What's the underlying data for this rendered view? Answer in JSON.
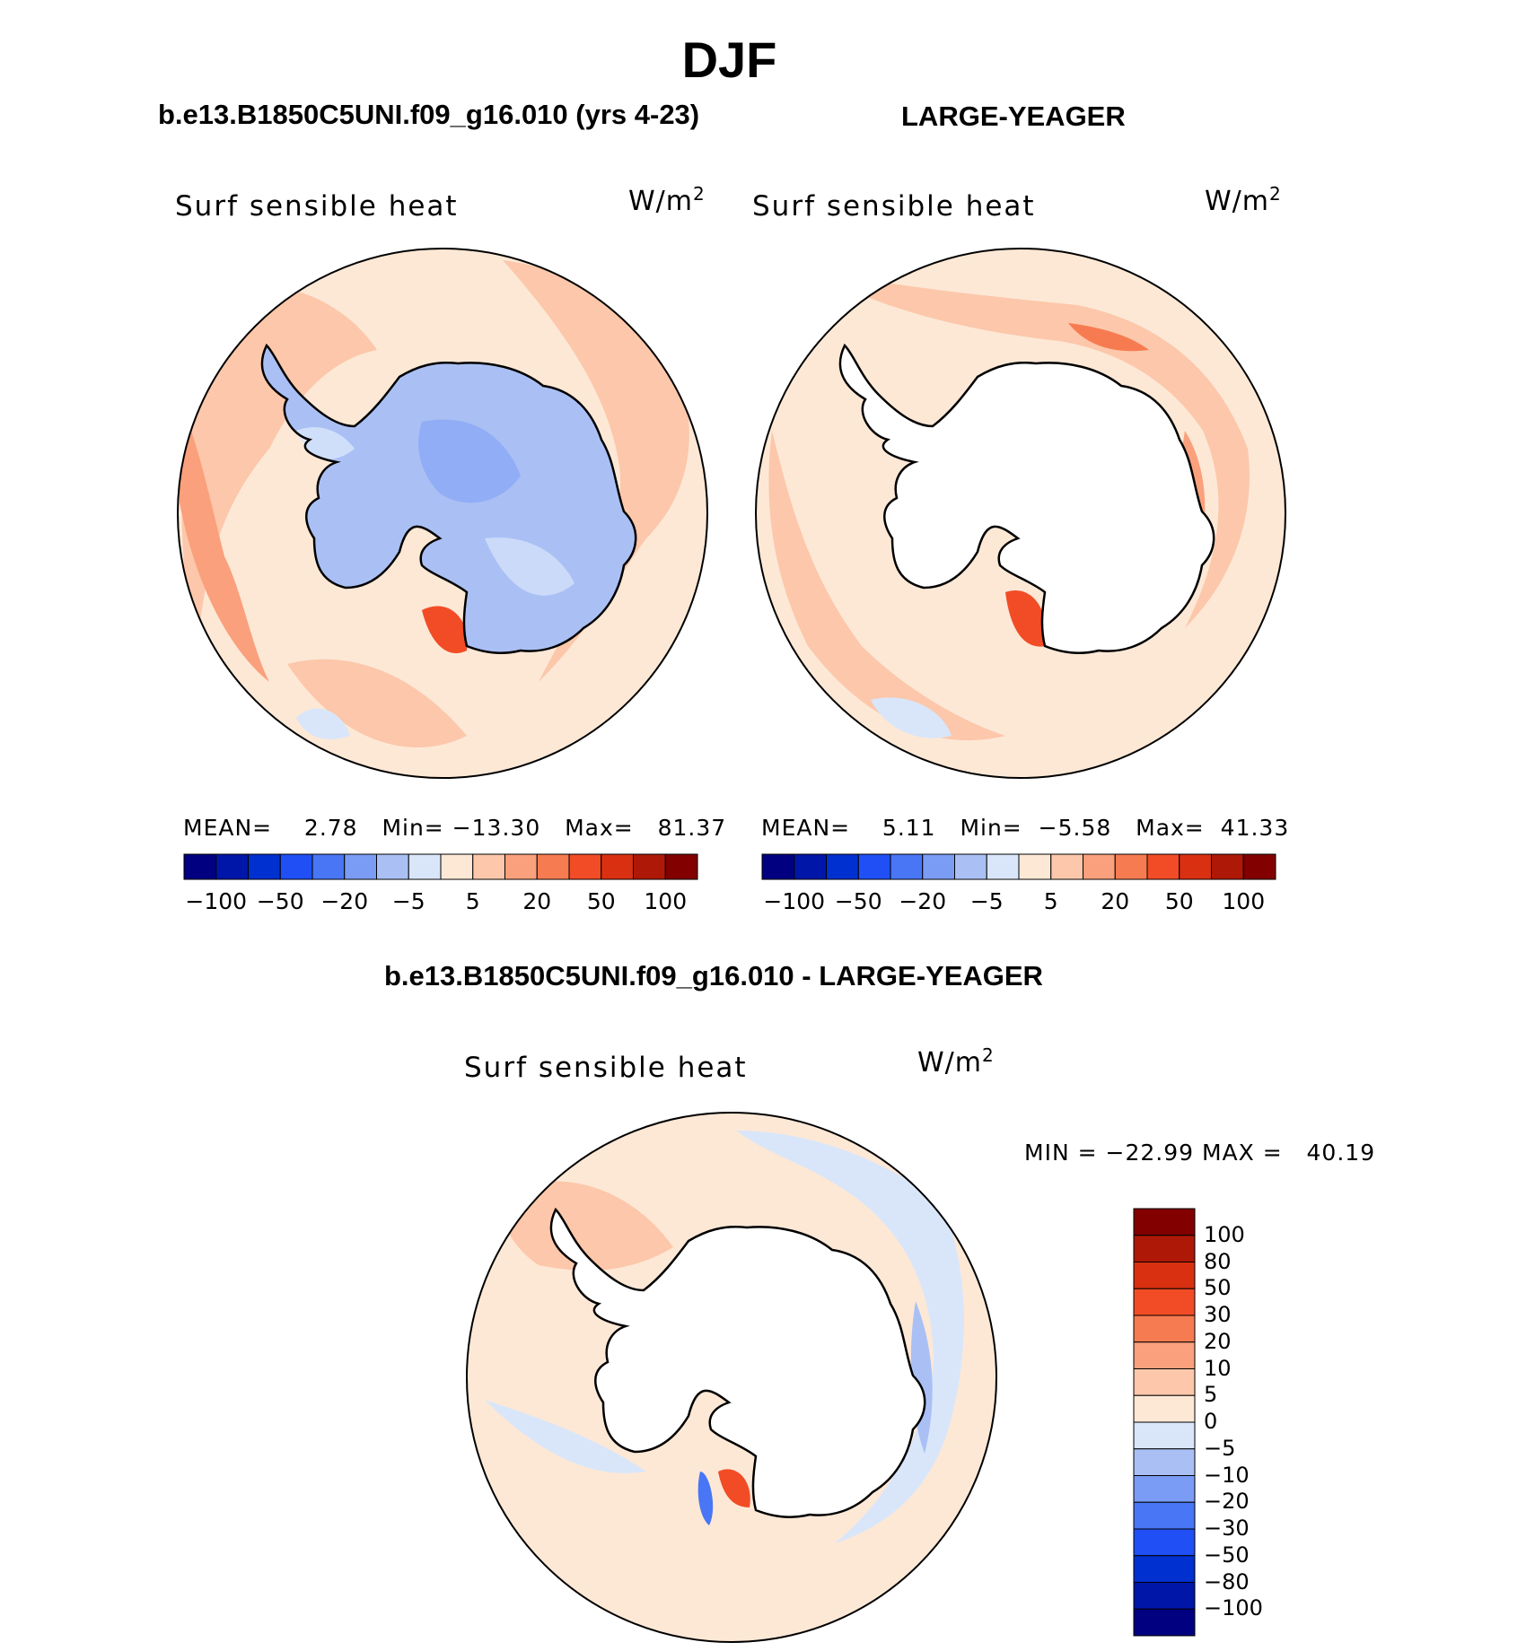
{
  "title": "DJF",
  "panels": [
    {
      "id": "p1",
      "case": "b.e13.B1850C5UNI.f09_g16.010 (yrs 4-23)",
      "variable": "Surf  sensible  heat",
      "units": "W/m",
      "units_sup": "2",
      "stats": {
        "mean_label": "MEAN=",
        "mean": "2.78",
        "min_label": "Min=",
        "min": "−13.30",
        "max_label": "Max=",
        "max": "81.37"
      }
    },
    {
      "id": "p2",
      "case": "LARGE-YEAGER",
      "variable": "Surf  sensible  heat",
      "units": "W/m",
      "units_sup": "2",
      "stats": {
        "mean_label": "MEAN=",
        "mean": "5.11",
        "min_label": "Min=",
        "min": "−5.58",
        "max_label": "Max=",
        "max": "41.33"
      }
    },
    {
      "id": "p3",
      "case": "b.e13.B1850C5UNI.f09_g16.010 - LARGE-YEAGER",
      "variable": "Surf  sensible  heat",
      "units": "W/m",
      "units_sup": "2",
      "stats": {
        "min_label": "MIN =",
        "min": "−22.99",
        "max_label": "MAX =",
        "max": "40.19"
      }
    }
  ],
  "colorbar_abs": {
    "colors": [
      "#000080",
      "#0016a8",
      "#0030d0",
      "#1f4ff5",
      "#4876f5",
      "#7b9cf5",
      "#aac0f5",
      "#d9e6fa",
      "#fde8d6",
      "#fcc7aa",
      "#faa07c",
      "#f77b51",
      "#f24c26",
      "#d93011",
      "#ae1806",
      "#820000"
    ],
    "labels": [
      "−100",
      "−50",
      "−20",
      "−5",
      "5",
      "20",
      "50",
      "100"
    ]
  },
  "colorbar_diff": {
    "colors_top_to_bottom": [
      "#820000",
      "#ae1806",
      "#d93011",
      "#f24c26",
      "#f77b51",
      "#faa07c",
      "#fcc7aa",
      "#fde8d6",
      "#d9e6fa",
      "#aac0f5",
      "#7b9cf5",
      "#4876f5",
      "#1f4ff5",
      "#0030d0",
      "#0016a8",
      "#000080"
    ],
    "labels": [
      "100",
      "80",
      "50",
      "30",
      "20",
      "10",
      "5",
      "0",
      "−5",
      "−10",
      "−20",
      "−30",
      "−50",
      "−80",
      "−100"
    ]
  },
  "colors": {
    "ocean_light": "#fde8d6",
    "ocean_mid": "#fcc7aa",
    "ocean_warm": "#faa07c",
    "ocean_hot": "#f24c26",
    "land_blue": "#aac0f5",
    "land_blue_dark": "#7b9cf5",
    "land_blue_light": "#d9e6fa",
    "diff_neg": "#d9e6fa",
    "diff_neg2": "#aac0f5"
  }
}
